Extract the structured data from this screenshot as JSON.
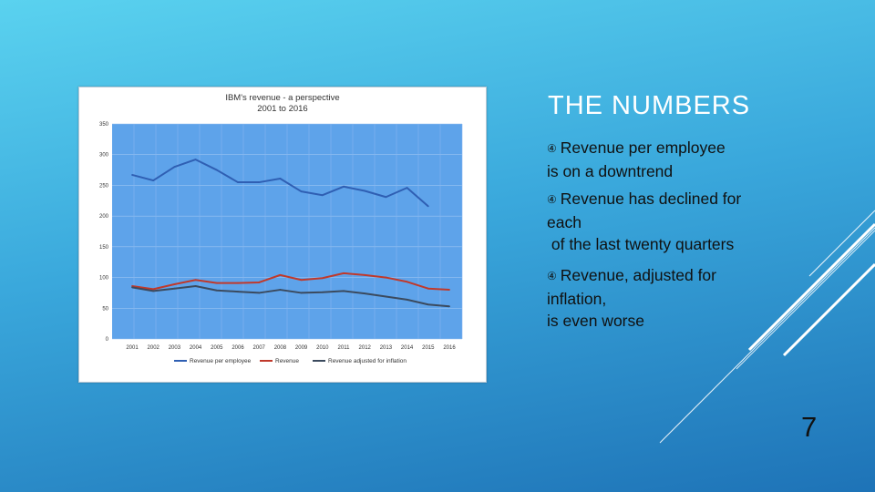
{
  "slide": {
    "heading": "THE NUMBERS",
    "bullet_symbol": "④",
    "bullets": [
      {
        "lines": [
          "Revenue per employee",
          "is on a downtrend"
        ]
      },
      {
        "lines": [
          "Revenue has declined for",
          "each",
          " of the last twenty quarters"
        ]
      },
      {
        "lines": [
          "Revenue, adjusted for",
          "inflation,",
          "is even worse"
        ]
      }
    ],
    "page_number": "7"
  },
  "chart_data": {
    "type": "line",
    "title_lines": [
      "IBM's revenue - a perspective",
      "2001 to 2016"
    ],
    "xlabel": "",
    "ylabel": "",
    "categories": [
      "2001",
      "2002",
      "2003",
      "2004",
      "2005",
      "2006",
      "2007",
      "2008",
      "2009",
      "2010",
      "2011",
      "2012",
      "2013",
      "2014",
      "2015",
      "2016"
    ],
    "ylim": [
      0,
      350
    ],
    "yticks": [
      "0",
      "50",
      "100",
      "150",
      "200",
      "250",
      "300",
      "350"
    ],
    "grid": true,
    "legend_position": "bottom",
    "series": [
      {
        "name": "Revenue per employee",
        "color": "#2f5fb3",
        "values": [
          267,
          258,
          280,
          292,
          275,
          255,
          255,
          261,
          240,
          234,
          248,
          241,
          231,
          246,
          216,
          null
        ]
      },
      {
        "name": "Revenue",
        "color": "#c0392b",
        "values": [
          86,
          81,
          89,
          96,
          91,
          91,
          92,
          104,
          96,
          99,
          107,
          104,
          100,
          93,
          82,
          80
        ]
      },
      {
        "name": "Revenue adjusted for inflation",
        "color": "#3b4a5e",
        "values": [
          84,
          78,
          82,
          86,
          79,
          77,
          75,
          80,
          75,
          76,
          78,
          74,
          69,
          64,
          56,
          53
        ]
      }
    ]
  }
}
